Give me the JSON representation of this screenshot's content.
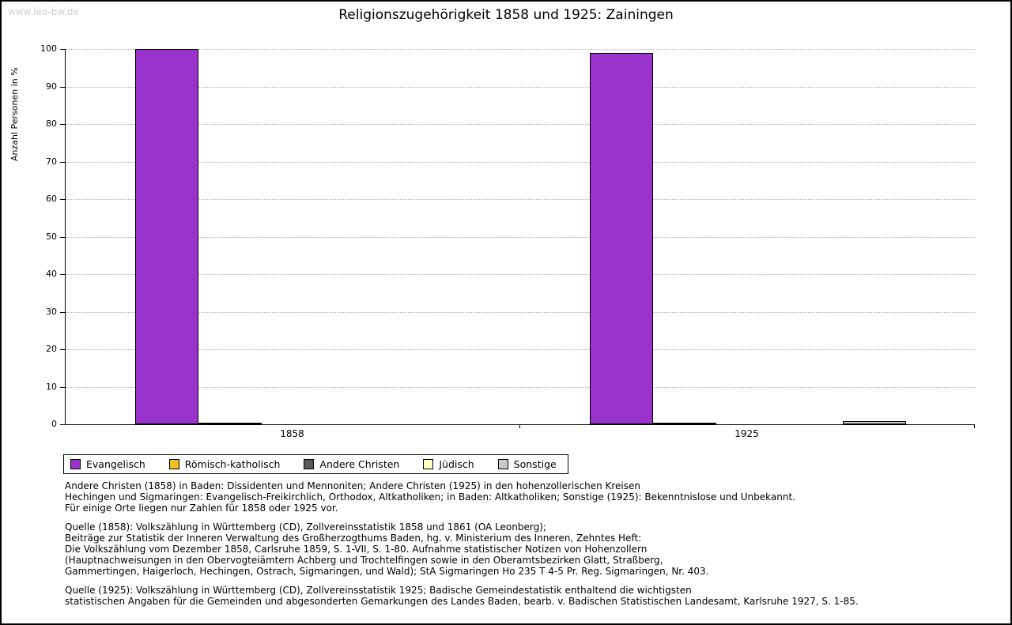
{
  "watermark": "www.leo-bw.de",
  "title": "Religionszugehörigkeit 1858 und 1925: Zainingen",
  "chart_data": {
    "type": "bar",
    "title": "Religionszugehörigkeit 1858 und 1925: Zainingen",
    "xlabel": "",
    "ylabel": "Anzahl Personen in %",
    "ylim": [
      0,
      100
    ],
    "ytick_step": 10,
    "grid": true,
    "legend_position": "bottom-left",
    "categories": [
      "1858",
      "1925"
    ],
    "series": [
      {
        "name": "Evangelisch",
        "color": "#9933cc",
        "values": [
          100,
          99
        ]
      },
      {
        "name": "Römisch-katholisch",
        "color": "#f0c020",
        "values": [
          0.3,
          0.3
        ]
      },
      {
        "name": "Andere Christen",
        "color": "#5a5a5a",
        "values": [
          0,
          0
        ]
      },
      {
        "name": "Jüdisch",
        "color": "#ffffc0",
        "values": [
          0,
          0
        ]
      },
      {
        "name": "Sonstige",
        "color": "#c9c9c9",
        "values": [
          0,
          0.8
        ]
      }
    ]
  },
  "notes": {
    "para1": [
      "Andere Christen (1858) in Baden: Dissidenten und Mennoniten; Andere Christen (1925) in den hohenzollerischen Kreisen",
      "Hechingen und Sigmaringen: Evangelisch-Freikirchlich, Orthodox, Altkatholiken; in Baden: Altkatholiken; Sonstige (1925): Bekenntnislose und Unbekannt.",
      "Für einige Orte liegen nur Zahlen für 1858 oder 1925 vor."
    ],
    "para2": [
      "Quelle (1858): Volkszählung in Württemberg (CD), Zollvereinsstatistik 1858 und 1861 (OA Leonberg);",
      "Beiträge zur Statistik der Inneren Verwaltung des Großherzogthums Baden, hg. v. Ministerium des Inneren, Zehntes Heft:",
      "Die Volkszählung vom Dezember 1858, Carlsruhe 1859, S. 1-VII, S. 1-80. Aufnahme statistischer Notizen von Hohenzollern",
      "(Hauptnachweisungen in den Obervogteiämtern Achberg und Trochtelfingen sowie in den Oberamtsbezirken Glatt, Straßberg,",
      "Gammertingen, Haigerloch, Hechingen, Ostrach, Sigmaringen, und Wald); StA Sigmaringen Ho 235 T 4-5 Pr. Reg. Sigmaringen, Nr. 403."
    ],
    "para3": [
      "Quelle (1925): Volkszählung in Württemberg (CD), Zollvereinsstatistik 1925; Badische Gemeindestatistik enthaltend die wichtigsten",
      "statistischen Angaben für die Gemeinden und abgesonderten Gemarkungen des Landes Baden, bearb. v. Badischen Statistischen Landesamt, Karlsruhe 1927, S. 1-85."
    ]
  }
}
